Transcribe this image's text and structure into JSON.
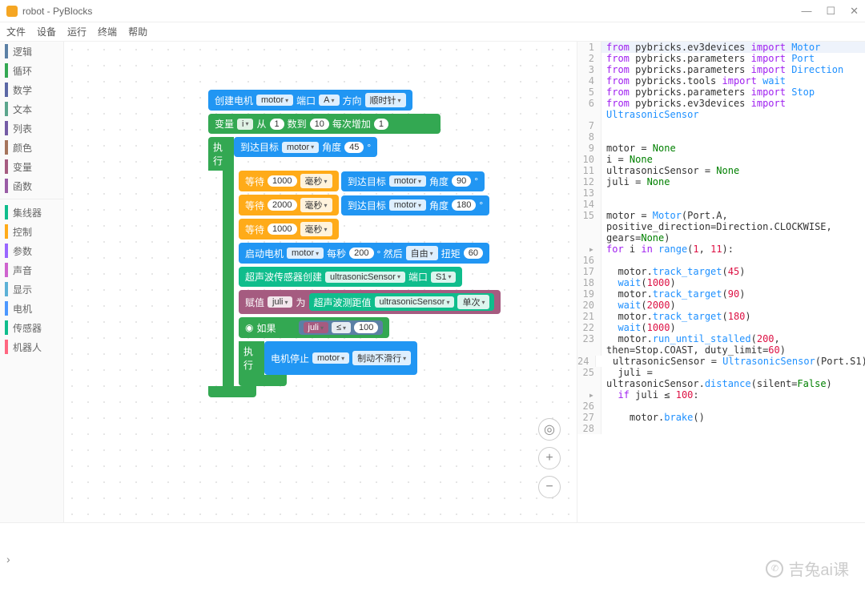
{
  "window": {
    "title": "robot - PyBlocks"
  },
  "menu": [
    "文件",
    "设备",
    "运行",
    "终端",
    "帮助"
  ],
  "categories": [
    {
      "label": "逻辑",
      "color": "#5b80a5"
    },
    {
      "label": "循环",
      "color": "#33a852"
    },
    {
      "label": "数学",
      "color": "#5b67a5"
    },
    {
      "label": "文本",
      "color": "#5ba58c"
    },
    {
      "label": "列表",
      "color": "#745ba5"
    },
    {
      "label": "颜色",
      "color": "#a5745b"
    },
    {
      "label": "变量",
      "color": "#a55b80"
    },
    {
      "label": "函数",
      "color": "#995ba5"
    },
    {
      "label": "集线器",
      "color": "#0fbd8c"
    },
    {
      "label": "控制",
      "color": "#ffab19"
    },
    {
      "label": "参数",
      "color": "#9966ff"
    },
    {
      "label": "声音",
      "color": "#cf63cf"
    },
    {
      "label": "显示",
      "color": "#5cb1d6"
    },
    {
      "label": "电机",
      "color": "#4c97ff"
    },
    {
      "label": "传感器",
      "color": "#0fbd8c"
    },
    {
      "label": "机器人",
      "color": "#ff6680"
    }
  ],
  "block_colors": {
    "motor": "#2196f3",
    "loop": "#33a852",
    "wait": "#ffab19",
    "sensor": "#0fbd8c",
    "var": "#a55b80",
    "logic": "#5b80a5"
  },
  "blocks": {
    "create_motor": {
      "label": "创建电机",
      "var": "motor",
      "port_label": "端口",
      "port": "A",
      "dir_label": "方向",
      "dir": "顺时针"
    },
    "loop": {
      "var_label": "变量",
      "var": "i",
      "from_label": "从",
      "from": "1",
      "to_label": "数到",
      "to": "10",
      "step_label": "每次增加",
      "step": "1",
      "exec": "执行"
    },
    "target1": {
      "label": "到达目标",
      "var": "motor",
      "angle_label": "角度",
      "angle": "45",
      "deg": "°"
    },
    "wait1": {
      "label": "等待",
      "val": "1000",
      "unit": "毫秒"
    },
    "target2": {
      "label": "到达目标",
      "var": "motor",
      "angle_label": "角度",
      "angle": "90",
      "deg": "°"
    },
    "wait2": {
      "label": "等待",
      "val": "2000",
      "unit": "毫秒"
    },
    "target3": {
      "label": "到达目标",
      "var": "motor",
      "angle_label": "角度",
      "angle": "180",
      "deg": "°"
    },
    "wait3": {
      "label": "等待",
      "val": "1000",
      "unit": "毫秒"
    },
    "start_motor": {
      "label": "启动电机",
      "var": "motor",
      "speed_label": "每秒",
      "speed": "200",
      "deg": "° 然后",
      "mode": "自由",
      "torque_label": "扭矩",
      "torque": "60"
    },
    "sensor_create": {
      "label": "超声波传感器创建",
      "var": "ultrasonicSensor",
      "port_label": "端口",
      "port": "S1"
    },
    "assign": {
      "label": "赋值",
      "var": "juli",
      "to": "为",
      "measure_label": "超声波测距值",
      "sensor": "ultrasonicSensor",
      "mode": "单次"
    },
    "if_block": {
      "icon": "◉",
      "label": "如果",
      "var": "juli",
      "op": "≤",
      "val": "100"
    },
    "exec2": "执行",
    "stop": {
      "label": "电机停止",
      "var": "motor",
      "mode": "制动不滑行"
    }
  },
  "code": [
    {
      "n": 1,
      "hl": true,
      "tokens": [
        [
          "kw",
          "from "
        ],
        [
          "nm",
          "pybricks.ev3devices "
        ],
        [
          "kw",
          "import "
        ],
        [
          "fn",
          "Motor"
        ]
      ]
    },
    {
      "n": 2,
      "tokens": [
        [
          "kw",
          "from "
        ],
        [
          "nm",
          "pybricks.parameters "
        ],
        [
          "kw",
          "import "
        ],
        [
          "fn",
          "Port"
        ]
      ]
    },
    {
      "n": 3,
      "tokens": [
        [
          "kw",
          "from "
        ],
        [
          "nm",
          "pybricks.parameters "
        ],
        [
          "kw",
          "import "
        ],
        [
          "fn",
          "Direction"
        ]
      ]
    },
    {
      "n": 4,
      "tokens": [
        [
          "kw",
          "from "
        ],
        [
          "nm",
          "pybricks.tools "
        ],
        [
          "kw",
          "import "
        ],
        [
          "fn",
          "wait"
        ]
      ]
    },
    {
      "n": 5,
      "tokens": [
        [
          "kw",
          "from "
        ],
        [
          "nm",
          "pybricks.parameters "
        ],
        [
          "kw",
          "import "
        ],
        [
          "fn",
          "Stop"
        ]
      ]
    },
    {
      "n": 6,
      "tokens": [
        [
          "kw",
          "from "
        ],
        [
          "nm",
          "pybricks.ev3devices "
        ],
        [
          "kw",
          "import"
        ]
      ]
    },
    {
      "n": "",
      "tokens": [
        [
          "fn",
          "UltrasonicSensor"
        ]
      ]
    },
    {
      "n": 7,
      "tokens": []
    },
    {
      "n": 8,
      "tokens": []
    },
    {
      "n": 9,
      "tokens": [
        [
          "nm",
          "motor = "
        ],
        [
          "kwd",
          "None"
        ]
      ]
    },
    {
      "n": 10,
      "tokens": [
        [
          "nm",
          "i = "
        ],
        [
          "kwd",
          "None"
        ]
      ]
    },
    {
      "n": 11,
      "tokens": [
        [
          "nm",
          "ultrasonicSensor = "
        ],
        [
          "kwd",
          "None"
        ]
      ]
    },
    {
      "n": 12,
      "tokens": [
        [
          "nm",
          "juli = "
        ],
        [
          "kwd",
          "None"
        ]
      ]
    },
    {
      "n": 13,
      "tokens": []
    },
    {
      "n": 14,
      "tokens": []
    },
    {
      "n": 15,
      "tokens": [
        [
          "nm",
          "motor = "
        ],
        [
          "fn",
          "Motor"
        ],
        [
          "nm",
          "(Port.A,"
        ]
      ]
    },
    {
      "n": "",
      "tokens": [
        [
          "nm",
          "positive_direction=Direction.CLOCKWISE,"
        ]
      ]
    },
    {
      "n": "",
      "tokens": [
        [
          "nm",
          "gears="
        ],
        [
          "kwd",
          "None"
        ],
        [
          "nm",
          ")"
        ]
      ]
    },
    {
      "n": 16,
      "fold": true,
      "tokens": [
        [
          "kw",
          "for "
        ],
        [
          "nm",
          "i "
        ],
        [
          "kw",
          "in "
        ],
        [
          "fn",
          "range"
        ],
        [
          "nm",
          "("
        ],
        [
          "num",
          "1"
        ],
        [
          "nm",
          ", "
        ],
        [
          "num",
          "11"
        ],
        [
          "nm",
          "):"
        ]
      ]
    },
    {
      "n": 17,
      "tokens": [
        [
          "nm",
          "  motor."
        ],
        [
          "fn",
          "track_target"
        ],
        [
          "nm",
          "("
        ],
        [
          "num",
          "45"
        ],
        [
          "nm",
          ")"
        ]
      ]
    },
    {
      "n": 18,
      "tokens": [
        [
          "nm",
          "  "
        ],
        [
          "fn",
          "wait"
        ],
        [
          "nm",
          "("
        ],
        [
          "num",
          "1000"
        ],
        [
          "nm",
          ")"
        ]
      ]
    },
    {
      "n": 19,
      "tokens": [
        [
          "nm",
          "  motor."
        ],
        [
          "fn",
          "track_target"
        ],
        [
          "nm",
          "("
        ],
        [
          "num",
          "90"
        ],
        [
          "nm",
          ")"
        ]
      ]
    },
    {
      "n": 20,
      "tokens": [
        [
          "nm",
          "  "
        ],
        [
          "fn",
          "wait"
        ],
        [
          "nm",
          "("
        ],
        [
          "num",
          "2000"
        ],
        [
          "nm",
          ")"
        ]
      ]
    },
    {
      "n": 21,
      "tokens": [
        [
          "nm",
          "  motor."
        ],
        [
          "fn",
          "track_target"
        ],
        [
          "nm",
          "("
        ],
        [
          "num",
          "180"
        ],
        [
          "nm",
          ")"
        ]
      ]
    },
    {
      "n": 22,
      "tokens": [
        [
          "nm",
          "  "
        ],
        [
          "fn",
          "wait"
        ],
        [
          "nm",
          "("
        ],
        [
          "num",
          "1000"
        ],
        [
          "nm",
          ")"
        ]
      ]
    },
    {
      "n": 23,
      "tokens": [
        [
          "nm",
          "  motor."
        ],
        [
          "fn",
          "run_until_stalled"
        ],
        [
          "nm",
          "("
        ],
        [
          "num",
          "200"
        ],
        [
          "nm",
          ","
        ]
      ]
    },
    {
      "n": "",
      "tokens": [
        [
          "nm",
          "then=Stop.COAST, duty_limit="
        ],
        [
          "num",
          "60"
        ],
        [
          "nm",
          ")"
        ]
      ]
    },
    {
      "n": 24,
      "tokens": [
        [
          "nm",
          "  ultrasonicSensor = "
        ],
        [
          "fn",
          "UltrasonicSensor"
        ],
        [
          "nm",
          "(Port.S1)"
        ]
      ]
    },
    {
      "n": 25,
      "tokens": [
        [
          "nm",
          "  juli ="
        ]
      ]
    },
    {
      "n": "",
      "tokens": [
        [
          "nm",
          "ultrasonicSensor."
        ],
        [
          "fn",
          "distance"
        ],
        [
          "nm",
          "(silent="
        ],
        [
          "kwd",
          "False"
        ],
        [
          "nm",
          ")"
        ]
      ]
    },
    {
      "n": 26,
      "fold": true,
      "tokens": [
        [
          "nm",
          "  "
        ],
        [
          "kw",
          "if "
        ],
        [
          "nm",
          "juli ≤ "
        ],
        [
          "num",
          "100"
        ],
        [
          "nm",
          ":"
        ]
      ]
    },
    {
      "n": 27,
      "tokens": [
        [
          "nm",
          "    motor."
        ],
        [
          "fn",
          "brake"
        ],
        [
          "nm",
          "()"
        ]
      ]
    },
    {
      "n": 28,
      "tokens": []
    }
  ],
  "watermark": "吉兔ai课"
}
